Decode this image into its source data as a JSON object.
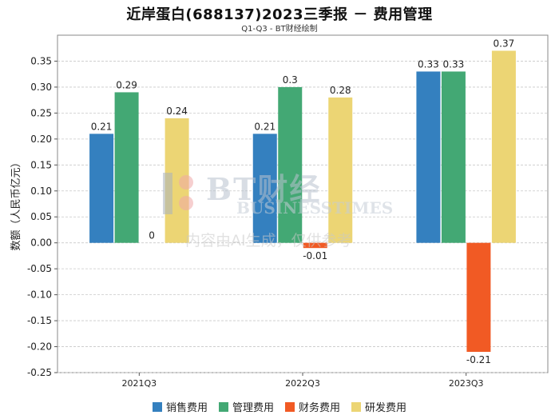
{
  "title": "近岸蛋白(688137)2023三季报 － 费用管理",
  "subtitle": "Q1-Q3 - BT财经绘制",
  "watermark": {
    "brand": "BT财经",
    "brand_en": "BUSINESSTIMES",
    "note": "内容由AI生成，仅供参考"
  },
  "chart_data": {
    "type": "bar",
    "title": "近岸蛋白(688137)2023三季报 － 费用管理",
    "subtitle": "Q1-Q3 - BT财经绘制",
    "xlabel": "",
    "ylabel": "数额（人民币亿元）",
    "categories": [
      "2021Q3",
      "2022Q3",
      "2023Q3"
    ],
    "ylim": [
      -0.25,
      0.4
    ],
    "yticks": [
      -0.25,
      -0.2,
      -0.15,
      -0.1,
      -0.05,
      0.0,
      0.05,
      0.1,
      0.15,
      0.2,
      0.25,
      0.3,
      0.35
    ],
    "ytick_labels": [
      "-0.25",
      "-0.20",
      "-0.15",
      "-0.10",
      "-0.05",
      "0.00",
      "0.05",
      "0.10",
      "0.15",
      "0.20",
      "0.25",
      "0.30",
      "0.35"
    ],
    "grid": true,
    "legend_position": "bottom",
    "series": [
      {
        "name": "销售费用",
        "color": "#3480bf",
        "values": [
          0.21,
          0.21,
          0.33
        ],
        "labels": [
          "0.21",
          "0.21",
          "0.33"
        ]
      },
      {
        "name": "管理费用",
        "color": "#43a874",
        "values": [
          0.29,
          0.3,
          0.33
        ],
        "labels": [
          "0.29",
          "0.3",
          "0.33"
        ]
      },
      {
        "name": "财务费用",
        "color": "#f15a24",
        "values": [
          0,
          -0.01,
          -0.21
        ],
        "labels": [
          "0",
          "-0.01",
          "-0.21"
        ]
      },
      {
        "name": "研发费用",
        "color": "#ecd574",
        "values": [
          0.24,
          0.28,
          0.37
        ],
        "labels": [
          "0.24",
          "0.28",
          "0.37"
        ]
      }
    ]
  }
}
